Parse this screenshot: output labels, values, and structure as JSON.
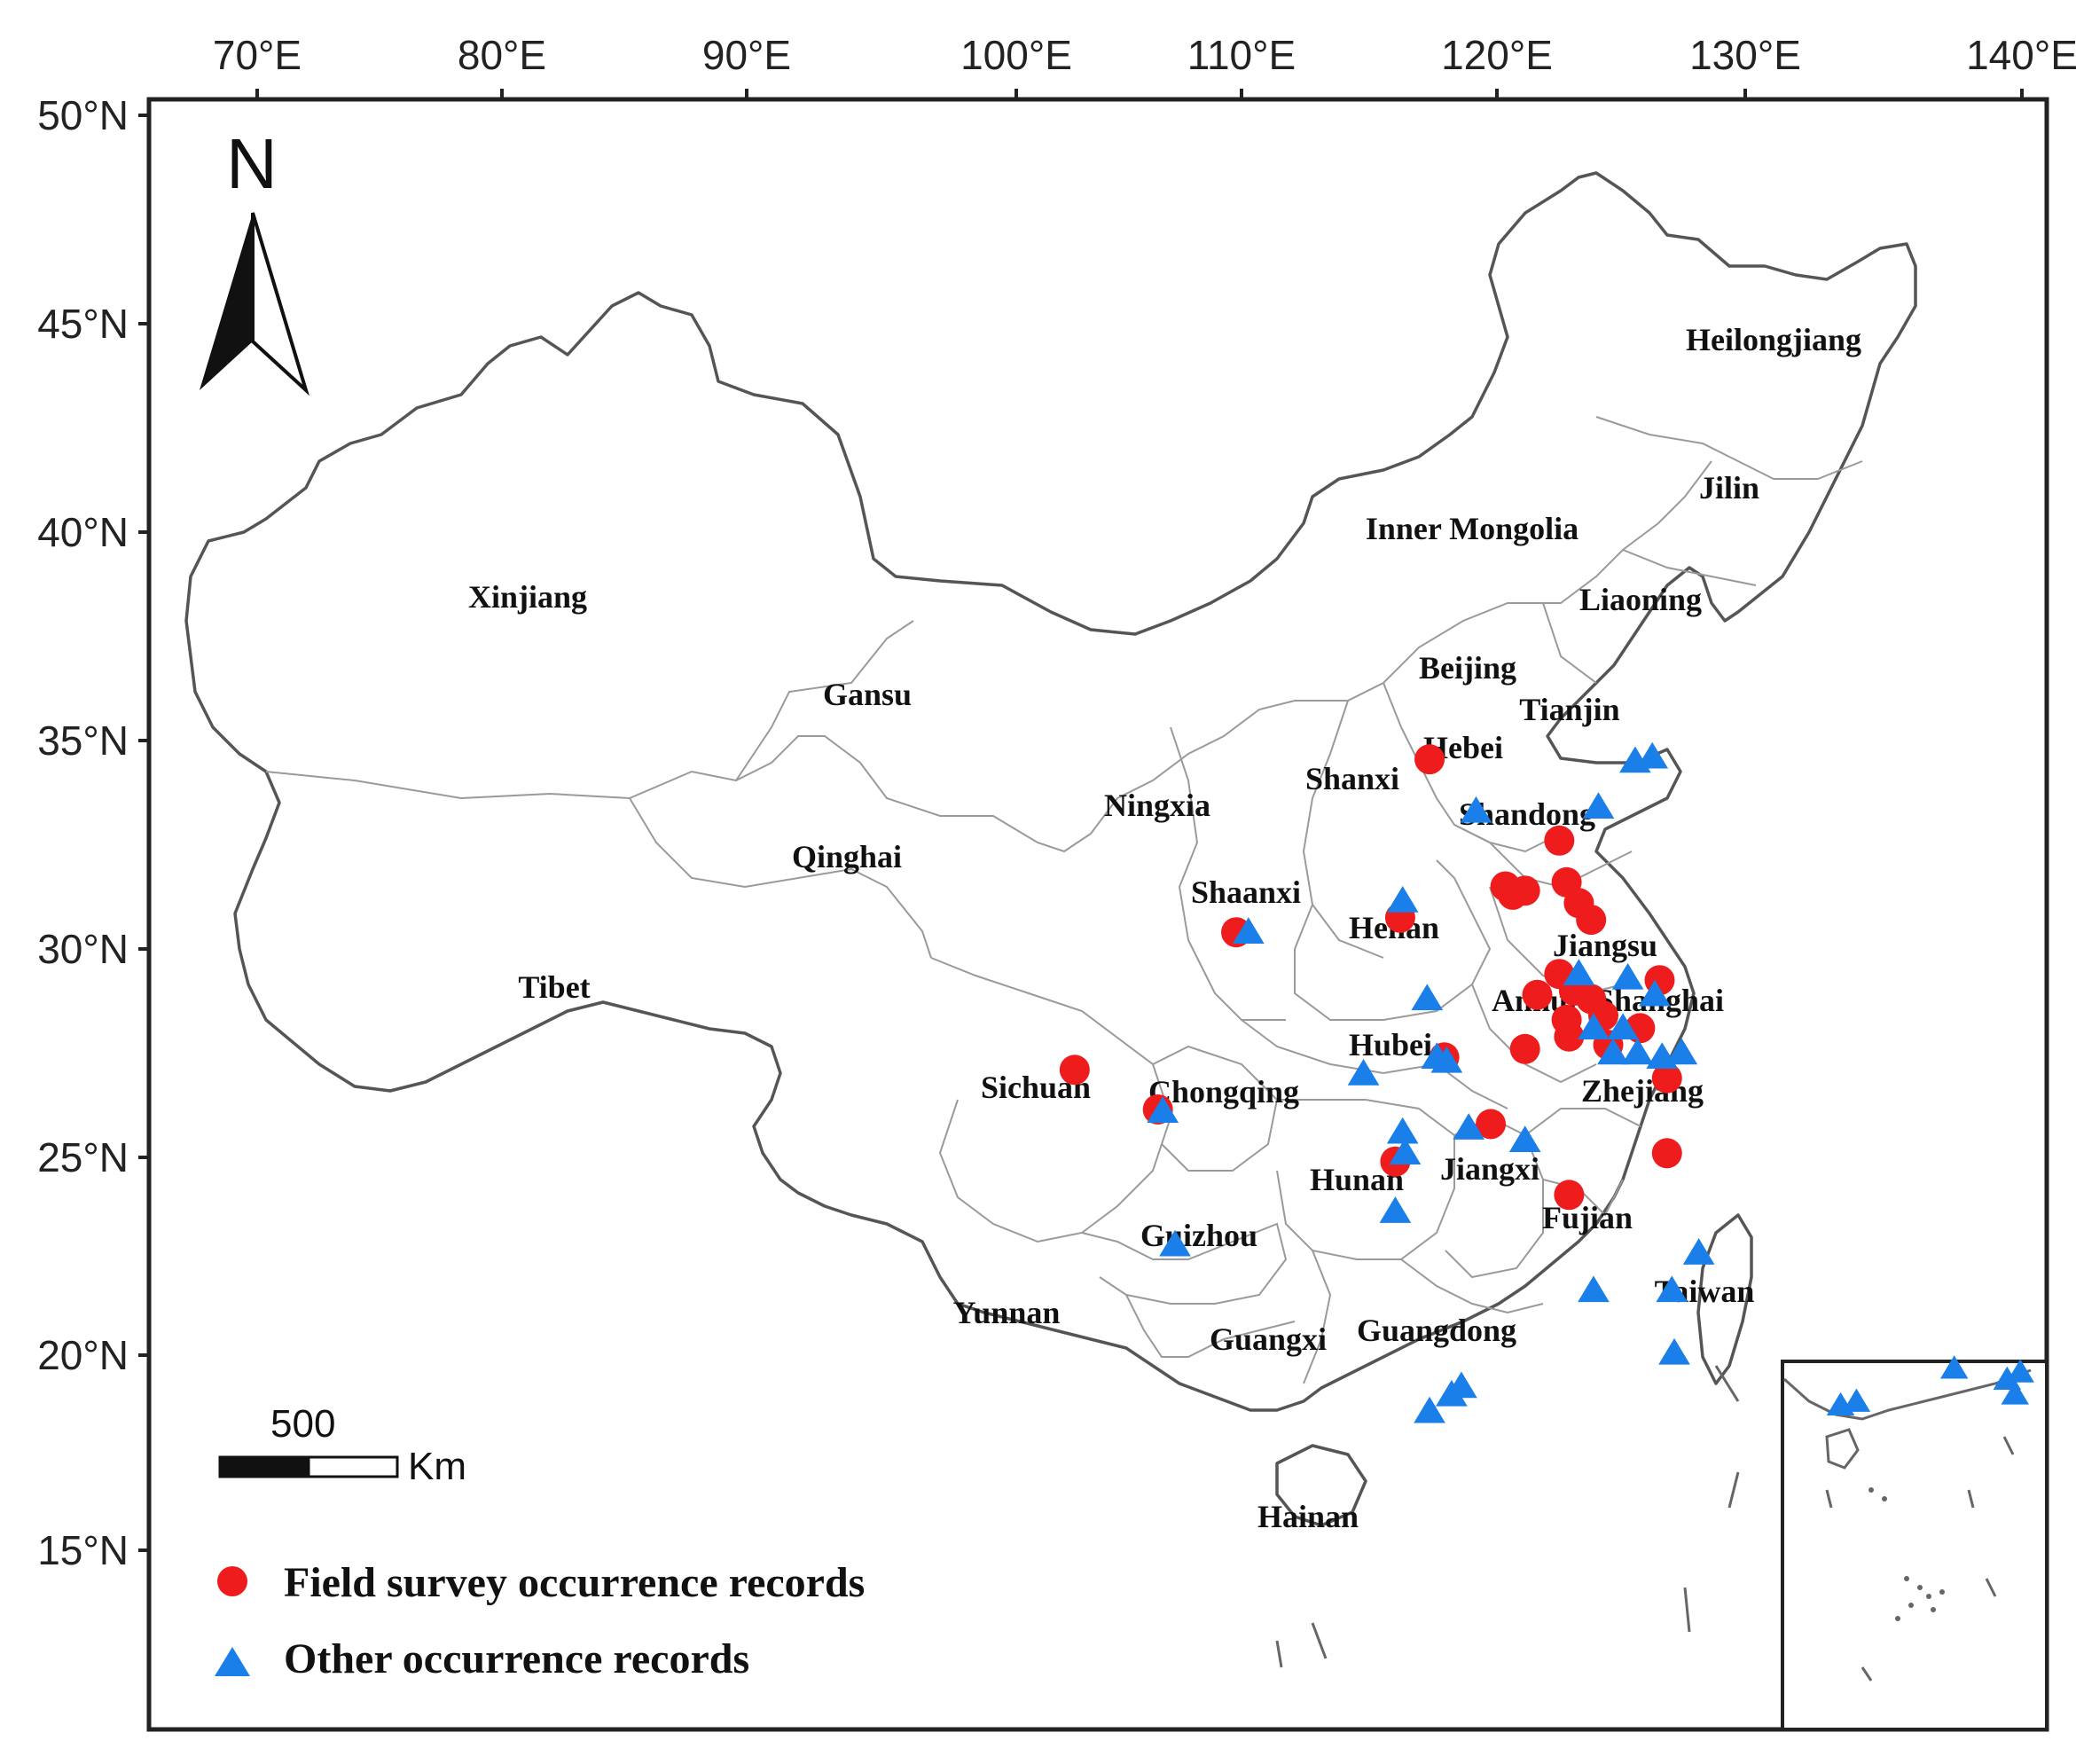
{
  "axes": {
    "top_labels": [
      "70°E",
      "80°E",
      "90°E",
      "100°E",
      "110°E",
      "120°E",
      "130°E",
      "140°E"
    ],
    "left_labels": [
      "50°N",
      "45°N",
      "40°N",
      "35°N",
      "30°N",
      "25°N",
      "20°N",
      "15°N"
    ]
  },
  "north_arrow": {
    "label": "N"
  },
  "scale_bar": {
    "value": "500",
    "unit": "Km"
  },
  "provinces": [
    {
      "name": "Heilongjiang"
    },
    {
      "name": "Jilin"
    },
    {
      "name": "Inner Mongolia"
    },
    {
      "name": "Liaoning"
    },
    {
      "name": "Xinjiang"
    },
    {
      "name": "Beijing"
    },
    {
      "name": "Tianjin"
    },
    {
      "name": "Gansu"
    },
    {
      "name": "Hebei"
    },
    {
      "name": "Shanxi"
    },
    {
      "name": "Ningxia"
    },
    {
      "name": "Shandong"
    },
    {
      "name": "Qinghai"
    },
    {
      "name": "Shaanxi"
    },
    {
      "name": "Henan"
    },
    {
      "name": "Jiangsu"
    },
    {
      "name": "Tibet"
    },
    {
      "name": "Anhui"
    },
    {
      "name": "Shanghai"
    },
    {
      "name": "Hubei"
    },
    {
      "name": "Sichuan"
    },
    {
      "name": "Chongqing"
    },
    {
      "name": "Zhejiang"
    },
    {
      "name": "Jiangxi"
    },
    {
      "name": "Hunan"
    },
    {
      "name": "Fujian"
    },
    {
      "name": "Guizhou"
    },
    {
      "name": "Taiwan"
    },
    {
      "name": "Yunnan"
    },
    {
      "name": "Guangxi"
    },
    {
      "name": "Guangdong"
    },
    {
      "name": "Hainan"
    }
  ],
  "legend": {
    "field": {
      "label": "Field survey occurrence records",
      "color": "#ee1c1c",
      "symbol": "circle"
    },
    "other": {
      "label": "Other occurrence records",
      "color": "#1a7fe8",
      "symbol": "triangle"
    }
  },
  "occurrences": {
    "field_survey": [
      {
        "lon": 117.9,
        "lat": 34.55
      },
      {
        "lon": 123.2,
        "lat": 32.6
      },
      {
        "lon": 121.0,
        "lat": 31.5
      },
      {
        "lon": 121.3,
        "lat": 31.3
      },
      {
        "lon": 121.8,
        "lat": 31.4
      },
      {
        "lon": 123.5,
        "lat": 31.6
      },
      {
        "lon": 124.0,
        "lat": 31.1
      },
      {
        "lon": 124.5,
        "lat": 30.7
      },
      {
        "lon": 110.0,
        "lat": 30.4
      },
      {
        "lon": 116.7,
        "lat": 30.75
      },
      {
        "lon": 103.4,
        "lat": 27.1
      },
      {
        "lon": 106.8,
        "lat": 26.15
      },
      {
        "lon": 123.2,
        "lat": 29.4
      },
      {
        "lon": 123.8,
        "lat": 29.0
      },
      {
        "lon": 124.5,
        "lat": 28.8
      },
      {
        "lon": 122.3,
        "lat": 28.9
      },
      {
        "lon": 123.5,
        "lat": 28.3
      },
      {
        "lon": 125.0,
        "lat": 28.4
      },
      {
        "lon": 126.5,
        "lat": 28.1
      },
      {
        "lon": 127.3,
        "lat": 29.25
      },
      {
        "lon": 121.8,
        "lat": 27.6
      },
      {
        "lon": 123.6,
        "lat": 27.9
      },
      {
        "lon": 125.2,
        "lat": 27.7
      },
      {
        "lon": 118.5,
        "lat": 27.4
      },
      {
        "lon": 127.6,
        "lat": 26.9
      },
      {
        "lon": 120.4,
        "lat": 25.8
      },
      {
        "lon": 127.6,
        "lat": 25.1
      },
      {
        "lon": 116.5,
        "lat": 24.9
      },
      {
        "lon": 123.6,
        "lat": 24.1
      }
    ],
    "other": [
      {
        "lon": 126.3,
        "lat": 34.5
      },
      {
        "lon": 127.0,
        "lat": 34.6
      },
      {
        "lon": 124.8,
        "lat": 33.4
      },
      {
        "lon": 119.8,
        "lat": 33.3
      },
      {
        "lon": 116.8,
        "lat": 31.15
      },
      {
        "lon": 110.5,
        "lat": 30.4
      },
      {
        "lon": 124.0,
        "lat": 29.4
      },
      {
        "lon": 126.0,
        "lat": 29.3
      },
      {
        "lon": 117.8,
        "lat": 28.8
      },
      {
        "lon": 124.6,
        "lat": 28.1
      },
      {
        "lon": 125.8,
        "lat": 28.1
      },
      {
        "lon": 127.1,
        "lat": 28.9
      },
      {
        "lon": 125.4,
        "lat": 27.5
      },
      {
        "lon": 126.4,
        "lat": 27.5
      },
      {
        "lon": 127.4,
        "lat": 27.4
      },
      {
        "lon": 118.2,
        "lat": 27.4
      },
      {
        "lon": 118.6,
        "lat": 27.3
      },
      {
        "lon": 115.2,
        "lat": 27.0
      },
      {
        "lon": 128.2,
        "lat": 27.5
      },
      {
        "lon": 107.0,
        "lat": 26.1
      },
      {
        "lon": 116.8,
        "lat": 25.6
      },
      {
        "lon": 116.9,
        "lat": 25.1
      },
      {
        "lon": 119.5,
        "lat": 25.7
      },
      {
        "lon": 121.8,
        "lat": 25.4
      },
      {
        "lon": 116.5,
        "lat": 23.7
      },
      {
        "lon": 107.5,
        "lat": 22.9
      },
      {
        "lon": 124.6,
        "lat": 21.8
      },
      {
        "lon": 127.8,
        "lat": 21.8
      },
      {
        "lon": 128.9,
        "lat": 22.7
      },
      {
        "lon": 127.9,
        "lat": 20.3
      },
      {
        "lon": 117.9,
        "lat": 18.9
      },
      {
        "lon": 118.8,
        "lat": 19.3
      },
      {
        "lon": 119.2,
        "lat": 19.5
      }
    ],
    "inset_other": [
      {
        "u": 0.22,
        "v": 0.12
      },
      {
        "u": 0.28,
        "v": 0.11
      },
      {
        "u": 0.65,
        "v": 0.02
      },
      {
        "u": 0.85,
        "v": 0.05
      },
      {
        "u": 0.88,
        "v": 0.09
      },
      {
        "u": 0.9,
        "v": 0.03
      }
    ]
  }
}
